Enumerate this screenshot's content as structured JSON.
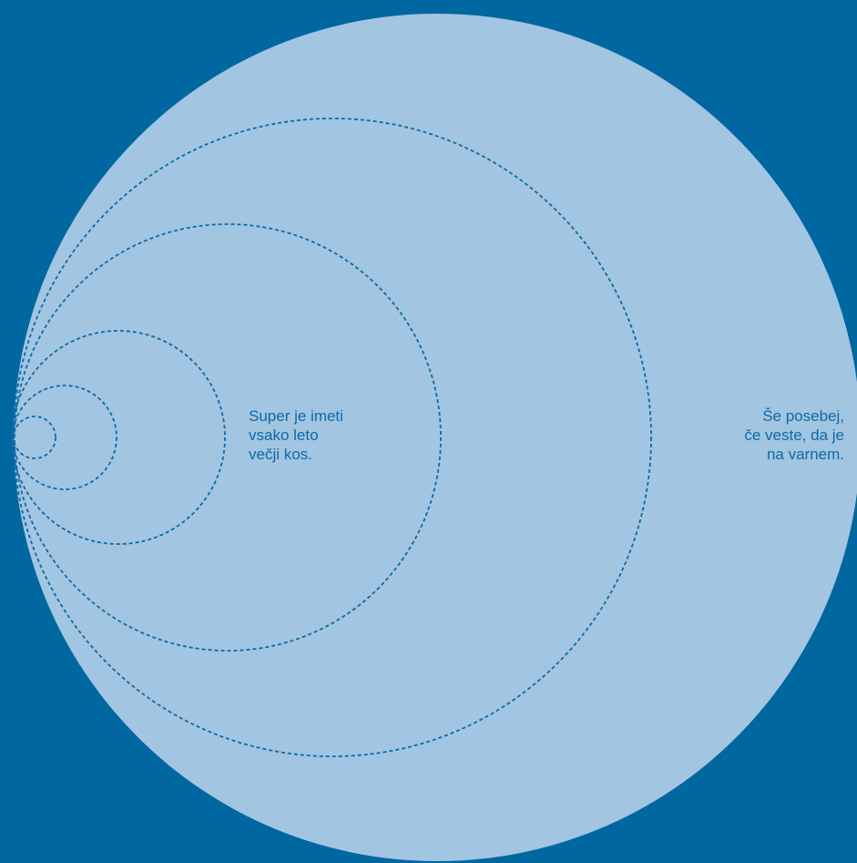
{
  "colors": {
    "background": "#0067a1",
    "big_circle_fill": "#a2c5e1",
    "dashed_stroke": "#0e6aa6",
    "text": "#0e6aa6"
  },
  "captions": {
    "inner": {
      "line1": "Super je imeti",
      "line2": "vsako leto",
      "line3": "večji kos."
    },
    "outer": {
      "line1": "Še posebej,",
      "line2": "če veste, da je",
      "line3": "na varnem."
    }
  }
}
